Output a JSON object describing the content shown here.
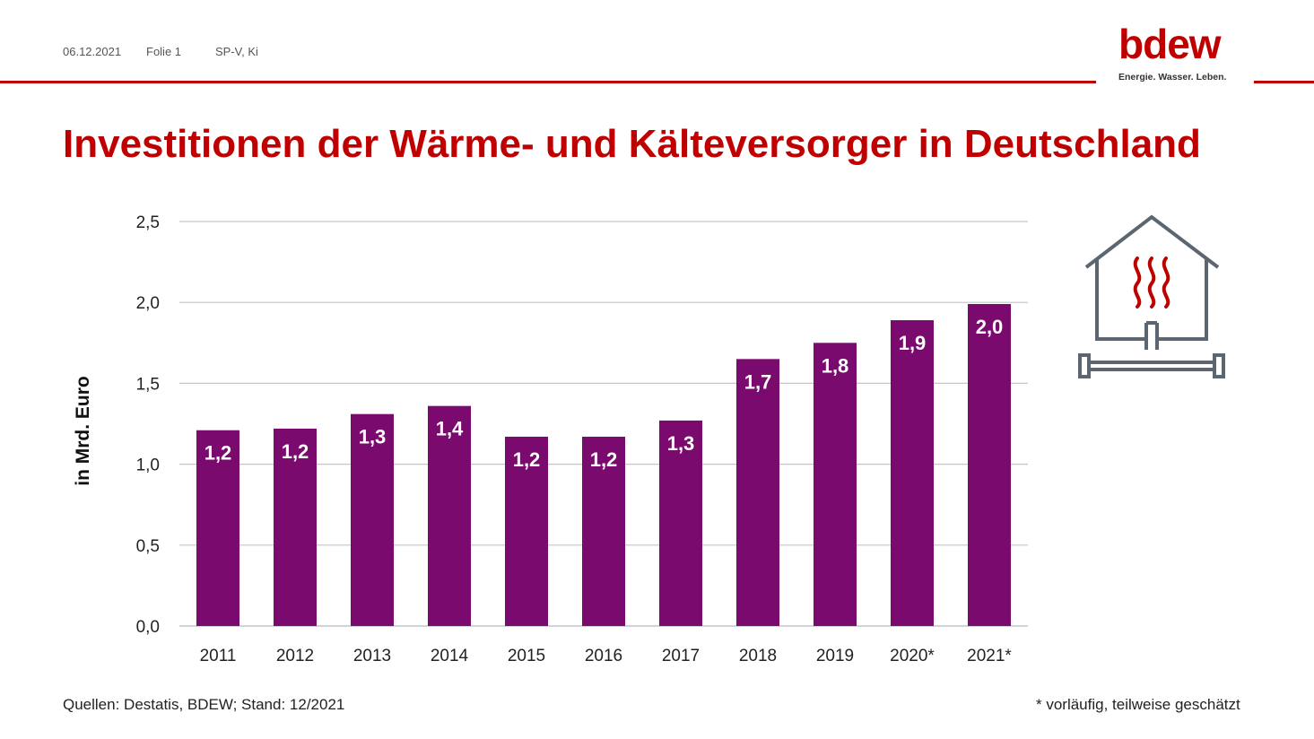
{
  "header": {
    "date": "06.12.2021",
    "slide": "Folie 1",
    "author": "SP-V, Ki"
  },
  "logo": {
    "wordmark": "bdew",
    "tagline": "Energie. Wasser. Leben."
  },
  "title": "Investitionen der Wärme- und Kälteversorger in Deutschland",
  "icon": "house-heating-icon",
  "colors": {
    "brand": "#c00000",
    "bar": "#7b0a6e",
    "grid": "#bfc6cc",
    "icon": "#5c6670"
  },
  "chart_data": {
    "type": "bar",
    "title": "",
    "xlabel": "",
    "ylabel": "in Mrd. Euro",
    "categories": [
      "2011",
      "2012",
      "2013",
      "2014",
      "2015",
      "2016",
      "2017",
      "2018",
      "2019",
      "2020*",
      "2021*"
    ],
    "values": [
      1.21,
      1.22,
      1.31,
      1.36,
      1.17,
      1.17,
      1.27,
      1.65,
      1.75,
      1.89,
      1.99
    ],
    "data_labels": [
      "1,2",
      "1,2",
      "1,3",
      "1,4",
      "1,2",
      "1,2",
      "1,3",
      "1,7",
      "1,8",
      "1,9",
      "2,0"
    ],
    "ylim": [
      0,
      2.5
    ],
    "yticks": [
      0,
      0.5,
      1.0,
      1.5,
      2.0,
      2.5
    ],
    "ytick_labels": [
      "0,0",
      "0,5",
      "1,0",
      "1,5",
      "2,0",
      "2,5"
    ],
    "grid": true,
    "legend": "none"
  },
  "footer": {
    "source": "Quellen: Destatis, BDEW; Stand: 12/2021",
    "note": "* vorläufig, teilweise geschätzt"
  }
}
